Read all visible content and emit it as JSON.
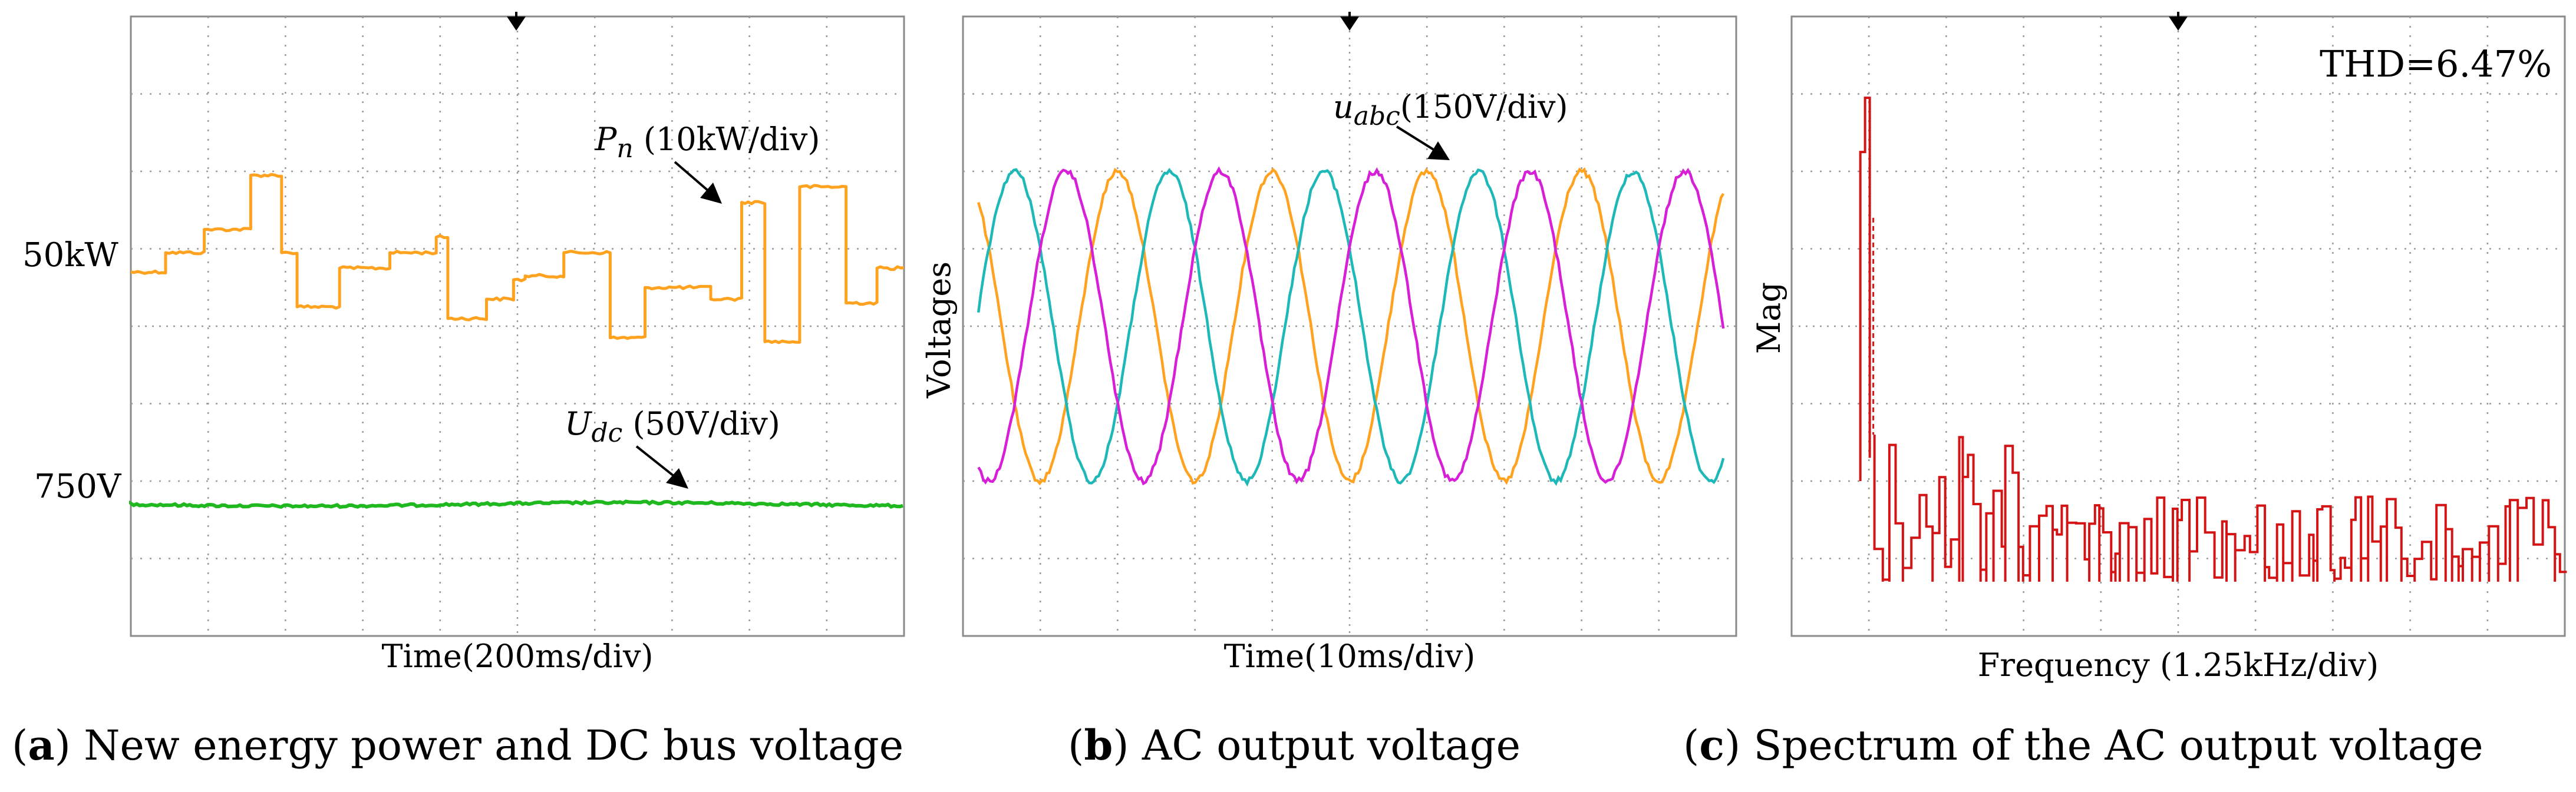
{
  "colors": {
    "power": "#FFA21F",
    "dc_bus": "#1FB81F",
    "phase_a": "#FFA21F",
    "phase_b": "#1FB8B8",
    "phase_c": "#D61FD6",
    "spectrum": "#D41414",
    "grid": "#999999",
    "frame": "#8A8A8A"
  },
  "chart_data": [
    {
      "type": "line",
      "panel_label": "a",
      "caption": "New energy power and DC bus voltage",
      "xlabel": "Time(200ms/div)",
      "x_unit_per_div": "200ms",
      "divisions": {
        "x": 10,
        "y": 8
      },
      "side_labels": [
        {
          "text": "50kW",
          "series": "power",
          "at_div": 3.3
        },
        {
          "text": "750V",
          "series": "dc_bus",
          "at_div": 6.3
        }
      ],
      "series": [
        {
          "name": "Pn",
          "label_main": "P",
          "label_sub": "n",
          "label_rest": " (10kW/div)",
          "color_key": "power",
          "description": "stepped power in divisions from top",
          "steps": [
            {
              "t0": 0.0,
              "t1": 0.45,
              "div": 3.3
            },
            {
              "t0": 0.45,
              "t1": 0.95,
              "div": 3.05
            },
            {
              "t0": 0.95,
              "t1": 1.55,
              "div": 2.75
            },
            {
              "t0": 1.55,
              "t1": 1.95,
              "div": 2.05
            },
            {
              "t0": 1.95,
              "t1": 2.15,
              "div": 3.05
            },
            {
              "t0": 2.15,
              "t1": 2.7,
              "div": 3.75
            },
            {
              "t0": 2.7,
              "t1": 3.35,
              "div": 3.25
            },
            {
              "t0": 3.35,
              "t1": 3.95,
              "div": 3.05
            },
            {
              "t0": 3.95,
              "t1": 4.1,
              "div": 2.85
            },
            {
              "t0": 4.1,
              "t1": 4.6,
              "div": 3.9
            },
            {
              "t0": 4.6,
              "t1": 4.95,
              "div": 3.65
            },
            {
              "t0": 4.95,
              "t1": 5.1,
              "div": 3.4
            },
            {
              "t0": 5.1,
              "t1": 5.6,
              "div": 3.35
            },
            {
              "t0": 5.6,
              "t1": 6.2,
              "div": 3.05
            },
            {
              "t0": 6.2,
              "t1": 6.65,
              "div": 4.15
            },
            {
              "t0": 6.65,
              "t1": 7.5,
              "div": 3.5
            },
            {
              "t0": 7.5,
              "t1": 7.9,
              "div": 3.65
            },
            {
              "t0": 7.9,
              "t1": 8.2,
              "div": 2.4
            },
            {
              "t0": 8.2,
              "t1": 8.65,
              "div": 4.2
            },
            {
              "t0": 8.65,
              "t1": 9.25,
              "div": 2.2
            },
            {
              "t0": 9.25,
              "t1": 9.65,
              "div": 3.7
            },
            {
              "t0": 9.65,
              "t1": 10.0,
              "div": 3.25
            }
          ]
        },
        {
          "name": "Udc",
          "label_main": "U",
          "label_sub": "dc",
          "label_rest": " (50V/div)",
          "color_key": "dc_bus",
          "description": "nearly constant DC bus voltage",
          "level_div": 6.3
        }
      ]
    },
    {
      "type": "line",
      "panel_label": "b",
      "caption": "AC output voltage",
      "xlabel": "Time(10ms/div)",
      "ylabel": "Voltages",
      "x_unit_per_div": "10ms",
      "divisions": {
        "x": 10,
        "y": 8
      },
      "series_label": {
        "main": "u",
        "sub": "abc",
        "rest": "(150V/div)"
      },
      "waveform": {
        "center_div": 4.0,
        "amplitude_div": 2.0,
        "period_div": 2.0,
        "phases_deg": [
          90,
          -30,
          210
        ],
        "color_keys": [
          "phase_a",
          "phase_b",
          "phase_c"
        ],
        "names": [
          "ua",
          "ub",
          "uc"
        ]
      }
    },
    {
      "type": "line",
      "panel_label": "c",
      "caption": "Spectrum of the AC output voltage",
      "xlabel": "Frequency (1.25kHz/div)",
      "ylabel": "Mag",
      "x_unit_per_div": "1.25kHz",
      "annotation": "THD=6.47%",
      "divisions": {
        "x": 10,
        "y": 8
      },
      "color_key": "spectrum",
      "spectrum": {
        "fundamental_x_div": 0.95,
        "fundamental_top_div": 1.05,
        "secondary_top_div": 1.75,
        "low_freq_band_div": [
          1.0,
          3.0
        ],
        "low_freq_range_div": [
          5.4,
          7.3
        ],
        "noise_floor_div": 7.3,
        "noise_range_div": [
          6.2,
          7.3
        ]
      }
    }
  ]
}
